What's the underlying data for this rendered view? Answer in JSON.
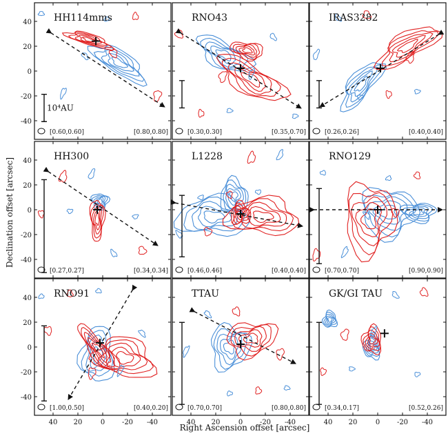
{
  "figure": {
    "xlabel": "Right Ascension offset [arcsec]",
    "ylabel": "Declination offset [arcsec]",
    "xticks": [
      "40",
      "20",
      "0",
      "-20",
      "-40"
    ],
    "yticks": [
      "40",
      "20",
      "0",
      "-20",
      "-40"
    ],
    "scalebar_label": "10⁴AU",
    "colors": {
      "redshifted": "#e02020",
      "blueshifted": "#4a8fd8",
      "frame": "#111111"
    }
  },
  "panels": [
    {
      "name": "HH114mms",
      "beam_left": "[0.60,0.60]",
      "beam_right": "[0.80,0.80]",
      "scalebar": true
    },
    {
      "name": "RNO43",
      "beam_left": "[0.30,0.30]",
      "beam_right": "[0.35,0.70]",
      "scalebar": false
    },
    {
      "name": "IRAS3282",
      "beam_left": "[0.26,0.26]",
      "beam_right": "[0.40,0.40]",
      "scalebar": false
    },
    {
      "name": "HH300",
      "beam_left": "[0.27,0.27]",
      "beam_right": "[0.34,0.34]",
      "scalebar": false
    },
    {
      "name": "L1228",
      "beam_left": "[0.46,0.46]",
      "beam_right": "[0.40,0.40]",
      "scalebar": false
    },
    {
      "name": "RNO129",
      "beam_left": "[0.70,0.70]",
      "beam_right": "[0.90,0.90]",
      "scalebar": false
    },
    {
      "name": "RNO91",
      "beam_left": "[1.00,0.50]",
      "beam_right": "[0.40,0.20]",
      "scalebar": false
    },
    {
      "name": "TTAU",
      "beam_left": "[0.70,0.70]",
      "beam_right": "[0.80,0.80]",
      "scalebar": false
    },
    {
      "name": "GK/GI TAU",
      "beam_left": "[0.34,0.17]",
      "beam_right": "[0.52,0.26]",
      "scalebar": false
    }
  ]
}
